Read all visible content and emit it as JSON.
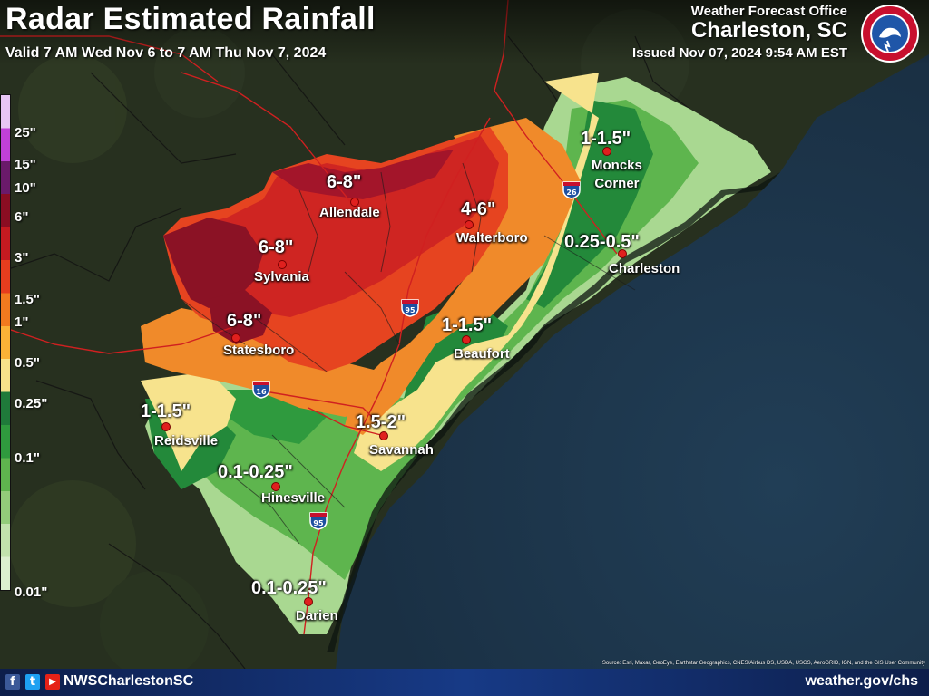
{
  "title": "Radar Estimated Rainfall",
  "valid": "Valid 7 AM Wed Nov 6 to 7 AM Thu Nov 7, 2024",
  "office": {
    "label": "Weather Forecast Office",
    "name": "Charleston, SC",
    "issued": "Issued Nov 07, 2024 9:54 AM EST"
  },
  "legend": {
    "unit": "inches",
    "labels": [
      "25\"",
      "15\"",
      "10\"",
      "6\"",
      "3\"",
      "1.5\"",
      "1\"",
      "0.5\"",
      "0.25\"",
      "0.1\"",
      "0.01\""
    ],
    "colors": [
      "#e8c6f5",
      "#c040d8",
      "#6a1a6a",
      "#8a0d22",
      "#c41a20",
      "#e63d1e",
      "#f27a1f",
      "#fbb237",
      "#f8e28a",
      "#1f7a3a",
      "#2f9a3e",
      "#5fb44e",
      "#93cc7a",
      "#c2e2ad",
      "#dcefcf"
    ]
  },
  "rainfall_labels": [
    {
      "amount": "6-8\"",
      "city": "Allendale"
    },
    {
      "amount": "6-8\"",
      "city": "Sylvania"
    },
    {
      "amount": "6-8\"",
      "city": "Statesboro"
    },
    {
      "amount": "4-6\"",
      "city": "Walterboro"
    },
    {
      "amount": "1-1.5\"",
      "city": "Moncks Corner"
    },
    {
      "amount": "0.25-0.5\"",
      "city": "Charleston"
    },
    {
      "amount": "1-1.5\"",
      "city": "Beaufort"
    },
    {
      "amount": "1.5-2\"",
      "city": "Savannah"
    },
    {
      "amount": "1-1.5\"",
      "city": "Reidsville"
    },
    {
      "amount": "0.1-0.25\"",
      "city": "Hinesville"
    },
    {
      "amount": "0.1-0.25\"",
      "city": "Darien"
    }
  ],
  "moncks": {
    "line1": "Moncks",
    "line2": "Corner"
  },
  "interstates": [
    "26",
    "95",
    "16",
    "95"
  ],
  "footer": {
    "handle": "NWSCharlestonSC",
    "url": "weather.gov/chs",
    "social_icons": [
      "facebook-icon",
      "twitter-icon",
      "youtube-icon"
    ]
  },
  "credits": "Source: Esri, Maxar, GeoEye, Earthstar Geographics, CNES/Airbus DS, USDA, USGS, AeroGRID, IGN, and the GIS User Community"
}
